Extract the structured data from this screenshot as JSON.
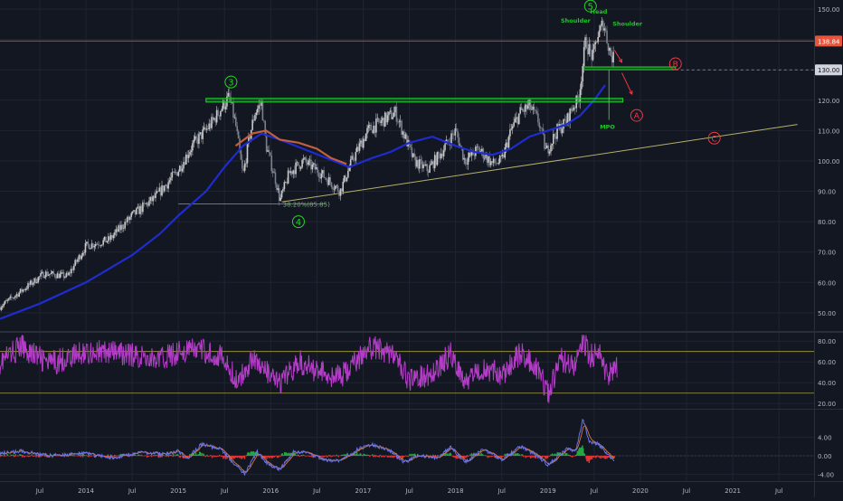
{
  "colors": {
    "background": "#131722",
    "grid": "#1f2433",
    "axis_text": "#b2b5be",
    "candle_up": "#c9c9c9",
    "candle_down": "#7a7f8c",
    "ma_blue": "#1e2cd0",
    "ma_red": "#c0603f",
    "wave_green": "#26d426",
    "green_zone": "#22c22b",
    "red_label": "#f23645",
    "trendline": "#b5b06a",
    "fib_line": "#78a878",
    "rsi_line": "#b43cc8",
    "rsi_band": "#a6a040",
    "macd_line": "#6a74e8",
    "signal_line": "#d87a3a",
    "hist_up": "#26a641",
    "hist_down": "#e03434",
    "price_tag_red": "#e8533b",
    "price_tag_white": "#d1d4dc"
  },
  "chart_data": [
    {
      "type": "candlestick",
      "panel": "price",
      "y_range": [
        44,
        153
      ],
      "y_ticks": [
        "150.00",
        "140.00",
        "130.00",
        "120.00",
        "110.00",
        "100.00",
        "90.00",
        "80.00",
        "70.00",
        "60.00",
        "50.00"
      ],
      "tick_values": [
        150,
        140,
        130,
        120,
        110,
        100,
        90,
        80,
        70,
        60,
        50
      ],
      "x_labels": [
        "Jul",
        "2014",
        "Jul",
        "2015",
        "Jul",
        "2016",
        "Jul",
        "2017",
        "Jul",
        "2018",
        "Jul",
        "2019",
        "Jul",
        "2020",
        "Jul",
        "2021",
        "Jul"
      ],
      "x_label_dates": [
        2013.5,
        2014.0,
        2014.5,
        2015.0,
        2015.5,
        2016.0,
        2016.5,
        2017.0,
        2017.5,
        2018.0,
        2018.5,
        2019.0,
        2019.5,
        2020.0,
        2020.5,
        2021.0,
        2021.5
      ],
      "x_range": [
        2013.07,
        2021.88
      ],
      "price_anchors": [
        [
          2013.07,
          52
        ],
        [
          2013.25,
          56
        ],
        [
          2013.55,
          63
        ],
        [
          2013.8,
          62
        ],
        [
          2014.0,
          72
        ],
        [
          2014.25,
          74
        ],
        [
          2014.5,
          82
        ],
        [
          2014.75,
          88
        ],
        [
          2015.0,
          97
        ],
        [
          2015.15,
          105
        ],
        [
          2015.35,
          112
        ],
        [
          2015.48,
          118
        ],
        [
          2015.55,
          121
        ],
        [
          2015.62,
          112
        ],
        [
          2015.7,
          95
        ],
        [
          2015.77,
          108
        ],
        [
          2015.83,
          116
        ],
        [
          2015.9,
          119
        ],
        [
          2015.95,
          105
        ],
        [
          2016.05,
          94
        ],
        [
          2016.1,
          87
        ],
        [
          2016.2,
          96
        ],
        [
          2016.35,
          100
        ],
        [
          2016.5,
          97
        ],
        [
          2016.65,
          93
        ],
        [
          2016.75,
          90
        ],
        [
          2016.88,
          100
        ],
        [
          2017.05,
          110
        ],
        [
          2017.25,
          114
        ],
        [
          2017.35,
          116
        ],
        [
          2017.45,
          108
        ],
        [
          2017.55,
          100
        ],
        [
          2017.7,
          97
        ],
        [
          2017.85,
          103
        ],
        [
          2018.0,
          110
        ],
        [
          2018.1,
          100
        ],
        [
          2018.25,
          104
        ],
        [
          2018.4,
          99
        ],
        [
          2018.5,
          100
        ],
        [
          2018.6,
          110
        ],
        [
          2018.7,
          116
        ],
        [
          2018.8,
          118
        ],
        [
          2018.9,
          113
        ],
        [
          2018.98,
          103
        ],
        [
          2019.1,
          110
        ],
        [
          2019.2,
          113
        ],
        [
          2019.27,
          118
        ],
        [
          2019.33,
          120
        ],
        [
          2019.37,
          130
        ],
        [
          2019.41,
          140
        ],
        [
          2019.45,
          136
        ],
        [
          2019.49,
          134
        ],
        [
          2019.53,
          141
        ],
        [
          2019.56,
          142
        ],
        [
          2019.6,
          146
        ],
        [
          2019.64,
          140
        ],
        [
          2019.68,
          135
        ],
        [
          2019.72,
          133
        ]
      ],
      "ma_long": [
        [
          2013.07,
          48
        ],
        [
          2013.5,
          53
        ],
        [
          2014.0,
          60
        ],
        [
          2014.5,
          69
        ],
        [
          2014.8,
          76
        ],
        [
          2015.0,
          82
        ],
        [
          2015.3,
          90
        ],
        [
          2015.5,
          98
        ],
        [
          2015.7,
          105
        ],
        [
          2015.9,
          109
        ],
        [
          2016.1,
          107
        ],
        [
          2016.35,
          104
        ],
        [
          2016.6,
          101
        ],
        [
          2016.85,
          98
        ],
        [
          2017.1,
          101
        ],
        [
          2017.3,
          103
        ],
        [
          2017.5,
          106
        ],
        [
          2017.75,
          108
        ],
        [
          2018.0,
          105
        ],
        [
          2018.2,
          103
        ],
        [
          2018.4,
          102
        ],
        [
          2018.6,
          104
        ],
        [
          2018.8,
          108
        ],
        [
          2019.0,
          110
        ],
        [
          2019.2,
          112
        ],
        [
          2019.35,
          115
        ],
        [
          2019.5,
          120
        ],
        [
          2019.62,
          125
        ]
      ],
      "ma_short": [
        [
          2015.62,
          105
        ],
        [
          2015.8,
          109
        ],
        [
          2015.95,
          110
        ],
        [
          2016.1,
          107
        ],
        [
          2016.3,
          106
        ],
        [
          2016.5,
          104
        ],
        [
          2016.65,
          101
        ],
        [
          2016.82,
          99
        ]
      ],
      "resistance_zone": {
        "x_start": 2015.3,
        "x_end": 2019.81,
        "y": 120
      },
      "neckline_zone": {
        "x_start": 2019.39,
        "x_end": 2020.38,
        "y": 130.5
      },
      "horizontal_level": {
        "y": 130,
        "x_start": 2020.38,
        "dashed": true
      },
      "red_level": {
        "y": 139.5
      },
      "trendline": [
        [
          2016.12,
          86.5
        ],
        [
          2021.7,
          112
        ]
      ],
      "fib_line": {
        "x_start": 2015.0,
        "x_end": 2016.6,
        "y": 85.85,
        "label": "38.20%(85.85)"
      },
      "mpo_marker": {
        "x": 2019.66,
        "y_top": 130,
        "y_bottom": 113.5,
        "label": "MPO"
      },
      "waves": [
        {
          "label": "3",
          "x": 2015.57,
          "y": 126
        },
        {
          "label": "4",
          "x": 2016.3,
          "y": 80
        },
        {
          "label": "5",
          "x": 2019.46,
          "y": 151
        }
      ],
      "abc_labels": [
        {
          "label": "A",
          "x": 2019.96,
          "y": 115
        },
        {
          "label": "B",
          "x": 2020.38,
          "y": 132
        },
        {
          "label": "C",
          "x": 2020.8,
          "y": 107.5
        }
      ],
      "pattern_labels": [
        {
          "label": "Shoulder",
          "x": 2019.3,
          "y": 145.5
        },
        {
          "label": "Head",
          "x": 2019.55,
          "y": 148.5
        },
        {
          "label": "Shoulder",
          "x": 2019.86,
          "y": 144.5
        }
      ],
      "arrows": [
        {
          "x1": 2019.72,
          "y1": 136.5,
          "x2": 2019.8,
          "y2": 132.5
        },
        {
          "x1": 2019.8,
          "y1": 129,
          "x2": 2019.91,
          "y2": 122
        }
      ],
      "price_tags": [
        {
          "value": "138.84",
          "y": 139.5,
          "style": "red"
        },
        {
          "value": "130.00",
          "y": 130,
          "style": "white"
        }
      ]
    },
    {
      "type": "line",
      "panel": "rsi",
      "y_range": [
        15,
        88
      ],
      "y_ticks": [
        "80.00",
        "60.00",
        "40.00",
        "20.00"
      ],
      "tick_values": [
        80,
        60,
        40,
        20
      ],
      "bands": [
        70,
        30
      ],
      "anchors": [
        [
          2013.07,
          60
        ],
        [
          2013.3,
          75
        ],
        [
          2013.6,
          58
        ],
        [
          2014.0,
          70
        ],
        [
          2014.4,
          68
        ],
        [
          2014.8,
          62
        ],
        [
          2015.0,
          70
        ],
        [
          2015.2,
          72
        ],
        [
          2015.45,
          66
        ],
        [
          2015.65,
          40
        ],
        [
          2015.8,
          65
        ],
        [
          2015.95,
          50
        ],
        [
          2016.1,
          38
        ],
        [
          2016.3,
          60
        ],
        [
          2016.5,
          52
        ],
        [
          2016.75,
          45
        ],
        [
          2016.95,
          62
        ],
        [
          2017.05,
          74
        ],
        [
          2017.3,
          70
        ],
        [
          2017.5,
          42
        ],
        [
          2017.75,
          50
        ],
        [
          2017.95,
          68
        ],
        [
          2018.1,
          42
        ],
        [
          2018.3,
          55
        ],
        [
          2018.5,
          48
        ],
        [
          2018.7,
          68
        ],
        [
          2018.9,
          52
        ],
        [
          2019.0,
          30
        ],
        [
          2019.15,
          62
        ],
        [
          2019.3,
          58
        ],
        [
          2019.38,
          82
        ],
        [
          2019.45,
          66
        ],
        [
          2019.55,
          68
        ],
        [
          2019.65,
          45
        ],
        [
          2019.75,
          55
        ]
      ]
    },
    {
      "type": "macd",
      "panel": "macd",
      "y_range": [
        -5.5,
        10
      ],
      "y_ticks": [
        "4.00",
        "0.00",
        "-4.00"
      ],
      "tick_values": [
        4,
        0,
        -4
      ],
      "anchors": [
        [
          2013.07,
          0.5
        ],
        [
          2013.3,
          1
        ],
        [
          2013.6,
          0
        ],
        [
          2014.0,
          0.5
        ],
        [
          2014.3,
          -0.5
        ],
        [
          2014.6,
          0.8
        ],
        [
          2014.85,
          0.3
        ],
        [
          2015.0,
          1
        ],
        [
          2015.1,
          -0.5
        ],
        [
          2015.25,
          2.5
        ],
        [
          2015.45,
          1.5
        ],
        [
          2015.62,
          -2
        ],
        [
          2015.72,
          -4
        ],
        [
          2015.85,
          1
        ],
        [
          2015.95,
          -1.5
        ],
        [
          2016.1,
          -3
        ],
        [
          2016.25,
          1
        ],
        [
          2016.4,
          0.5
        ],
        [
          2016.6,
          -1
        ],
        [
          2016.75,
          -1
        ],
        [
          2016.95,
          1.5
        ],
        [
          2017.1,
          2.5
        ],
        [
          2017.3,
          1
        ],
        [
          2017.45,
          -1.5
        ],
        [
          2017.6,
          0.2
        ],
        [
          2017.8,
          -0.5
        ],
        [
          2017.95,
          2
        ],
        [
          2018.1,
          -1.5
        ],
        [
          2018.3,
          1.5
        ],
        [
          2018.5,
          -1
        ],
        [
          2018.7,
          2
        ],
        [
          2018.85,
          0.5
        ],
        [
          2019.0,
          -2
        ],
        [
          2019.2,
          1.5
        ],
        [
          2019.3,
          1
        ],
        [
          2019.38,
          8
        ],
        [
          2019.45,
          3
        ],
        [
          2019.55,
          2.5
        ],
        [
          2019.65,
          0
        ],
        [
          2019.72,
          -1
        ]
      ]
    }
  ]
}
